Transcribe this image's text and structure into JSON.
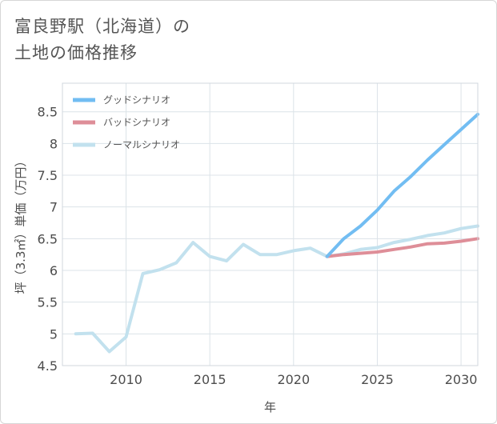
{
  "title": {
    "line1": "富良野駅（北海道）の",
    "line2": "土地の価格推移"
  },
  "chart_data": {
    "type": "line",
    "xlabel": "年",
    "ylabel": "坪（3.3㎡）単価（万円）",
    "xlim": [
      2006.2,
      2031
    ],
    "ylim": [
      4.5,
      8.95
    ],
    "x_ticks": [
      2010,
      2015,
      2020,
      2025,
      2030
    ],
    "y_ticks": [
      4.5,
      5,
      5.5,
      6,
      6.5,
      7,
      7.5,
      8,
      8.5
    ],
    "grid": true,
    "legend_position": "top-left",
    "series": [
      {
        "name": "グッドシナリオ",
        "color": "#72bdf2",
        "x": [
          2022,
          2023,
          2024,
          2025,
          2026,
          2027,
          2028,
          2029,
          2030,
          2031
        ],
        "y": [
          6.22,
          6.5,
          6.7,
          6.95,
          7.25,
          7.48,
          7.74,
          7.98,
          8.22,
          8.46
        ]
      },
      {
        "name": "バッドシナリオ",
        "color": "#de8e98",
        "x": [
          2022,
          2023,
          2024,
          2025,
          2026,
          2027,
          2028,
          2029,
          2030,
          2031
        ],
        "y": [
          6.22,
          6.25,
          6.27,
          6.29,
          6.33,
          6.37,
          6.42,
          6.43,
          6.46,
          6.5
        ]
      },
      {
        "name": "ノーマルシナリオ",
        "color": "#c2e1ee",
        "x": [
          2007,
          2008,
          2009,
          2010,
          2011,
          2012,
          2013,
          2014,
          2015,
          2016,
          2017,
          2018,
          2019,
          2020,
          2021,
          2022,
          2023,
          2024,
          2025,
          2026,
          2027,
          2028,
          2029,
          2030,
          2031
        ],
        "y": [
          5.0,
          5.01,
          4.72,
          4.95,
          5.95,
          6.01,
          6.12,
          6.44,
          6.22,
          6.15,
          6.41,
          6.25,
          6.25,
          6.31,
          6.35,
          6.22,
          6.26,
          6.33,
          6.36,
          6.44,
          6.49,
          6.55,
          6.59,
          6.66,
          6.7
        ]
      }
    ]
  }
}
